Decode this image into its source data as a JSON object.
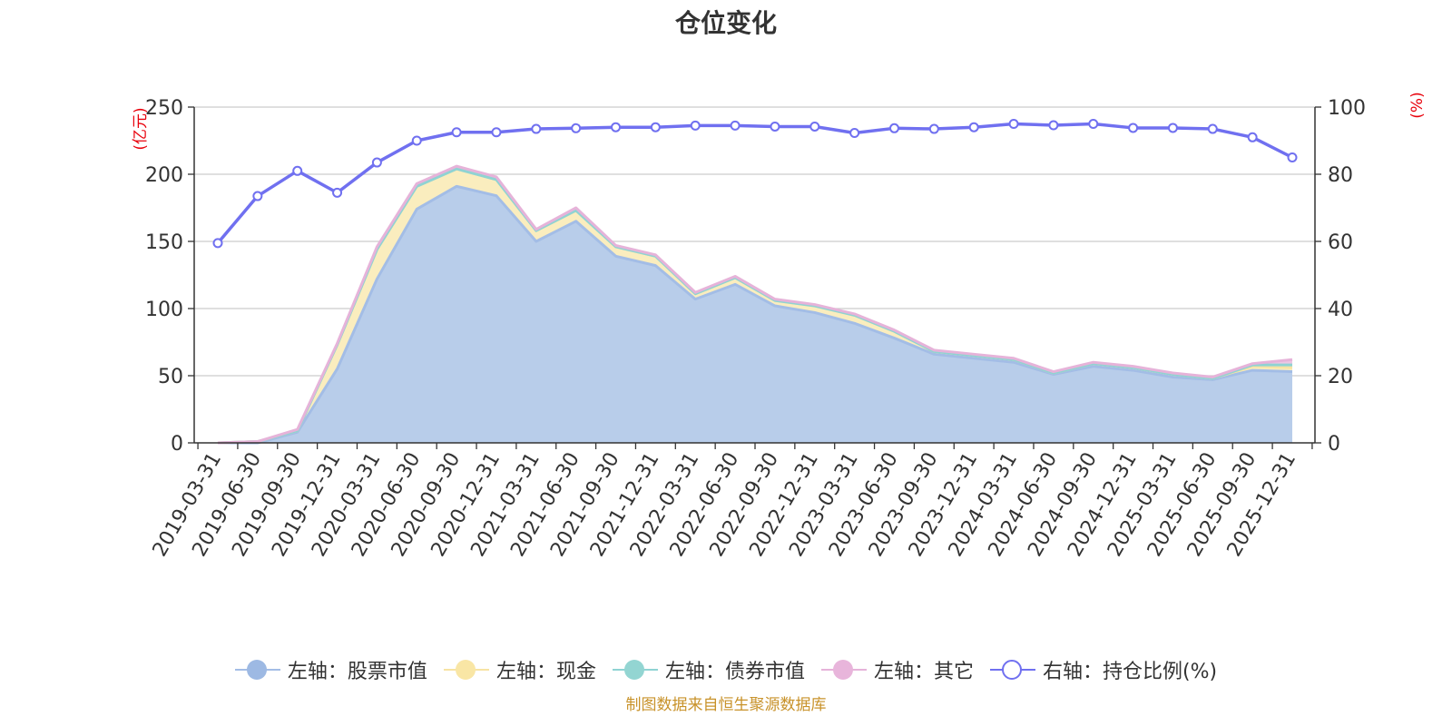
{
  "title": "仓位变化",
  "footer": "制图数据来自恒生聚源数据库",
  "chart_data": {
    "type": "area",
    "categories": [
      "2019-03-31",
      "2019-06-30",
      "2019-09-30",
      "2019-12-31",
      "2020-03-31",
      "2020-06-30",
      "2020-09-30",
      "2020-12-31",
      "2021-03-31",
      "2021-06-30",
      "2021-09-30",
      "2021-12-31",
      "2022-03-31",
      "2022-06-30",
      "2022-09-30",
      "2022-12-31",
      "2023-03-31",
      "2023-06-30",
      "2023-09-30",
      "2023-12-31",
      "2024-03-31",
      "2024-06-30",
      "2024-09-30",
      "2024-12-31",
      "2025-03-31",
      "2025-06-30",
      "2025-09-30",
      "2025-12-31"
    ],
    "left_axis": {
      "unit_label": "(亿元)",
      "ylim": [
        0,
        250
      ],
      "ticks": [
        "0",
        "50",
        "100",
        "150",
        "200",
        "250"
      ]
    },
    "right_axis": {
      "unit_label": "(%)",
      "ylim": [
        0,
        100
      ],
      "ticks": [
        "0",
        "20",
        "40",
        "60",
        "80",
        "100"
      ]
    },
    "grid": true,
    "legend_position": "bottom",
    "series": [
      {
        "name": "左轴：股票市值",
        "axis": "left",
        "stacked": true,
        "color": "#a3bde6",
        "fill": "#b8cdea",
        "values": [
          0,
          0,
          8,
          55,
          122,
          174,
          191,
          184,
          150,
          165,
          139,
          132,
          107,
          118,
          102,
          97,
          89,
          78,
          66,
          63,
          60,
          51,
          57,
          54,
          49,
          47,
          54,
          53
        ]
      },
      {
        "name": "左轴：现金",
        "axis": "left",
        "stacked": true,
        "color": "#f7e3a3",
        "fill": "#faedbe",
        "values": [
          0,
          1,
          1,
          18,
          22,
          17,
          13,
          12,
          8,
          8,
          7,
          7,
          4,
          5,
          4,
          5,
          6,
          5,
          2,
          2,
          2,
          1,
          2,
          2,
          2,
          1,
          3,
          3
        ]
      },
      {
        "name": "左轴：债券市值",
        "axis": "left",
        "stacked": true,
        "color": "#8fd3d3",
        "fill": "#b6e3df",
        "values": [
          0,
          0,
          0,
          0,
          0,
          0,
          0,
          0,
          0,
          0,
          0,
          0,
          0,
          0,
          0,
          0,
          0,
          0,
          0,
          0,
          0,
          0,
          0,
          0,
          0,
          0,
          1,
          2
        ]
      },
      {
        "name": "左轴：其它",
        "axis": "left",
        "stacked": true,
        "color": "#e6b3d9",
        "fill": "#ecc6e3",
        "values": [
          0,
          0,
          1,
          1,
          2,
          2,
          2,
          2,
          1,
          2,
          1,
          1,
          1,
          1,
          1,
          1,
          1,
          1,
          1,
          1,
          1,
          1,
          1,
          1,
          1,
          1,
          1,
          4
        ]
      },
      {
        "name": "右轴：持仓比例(%)",
        "axis": "right",
        "stacked": false,
        "color": "#7070f0",
        "fill": "none",
        "values": [
          59.5,
          73.5,
          81,
          74.5,
          83.5,
          90,
          92.5,
          92.5,
          93.5,
          93.7,
          94,
          94,
          94.5,
          94.5,
          94.2,
          94.2,
          92.3,
          93.7,
          93.5,
          94,
          95,
          94.6,
          95,
          93.8,
          93.8,
          93.5,
          91,
          85
        ]
      }
    ]
  }
}
